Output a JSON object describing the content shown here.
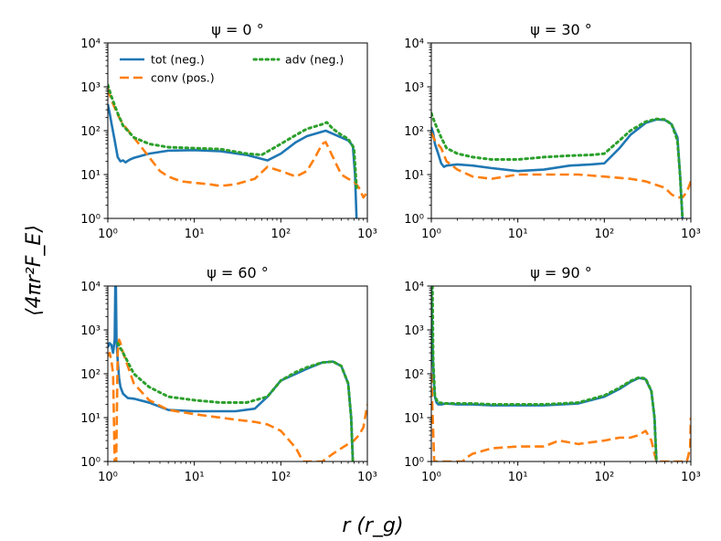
{
  "figure": {
    "ylabel": "⟨4πr²F_E⟩",
    "xlabel": "r (r_g)"
  },
  "colors": {
    "tot": "#1f77b4",
    "conv": "#ff7f0e",
    "adv": "#2ca02c"
  },
  "legend": [
    {
      "key": "tot",
      "label": "tot (neg.)",
      "style": "solid"
    },
    {
      "key": "conv",
      "label": "conv (pos.)",
      "style": "dashed"
    },
    {
      "key": "adv",
      "label": "adv (neg.)",
      "style": "dotted"
    }
  ],
  "chart_data": [
    {
      "type": "line",
      "title": "ψ = 0 °",
      "xscale": "log",
      "yscale": "log",
      "xlim": [
        1,
        1000
      ],
      "ylim": [
        1,
        10000
      ],
      "xticks": [
        1,
        10,
        100,
        1000
      ],
      "yticks": [
        1,
        10,
        100,
        1000,
        10000
      ],
      "legend_position": "top",
      "series": [
        {
          "name": "tot (neg.)",
          "key": "tot",
          "x": [
            1,
            1.05,
            1.1,
            1.2,
            1.3,
            1.4,
            1.5,
            1.6,
            1.8,
            2,
            3,
            5,
            10,
            20,
            40,
            70,
            100,
            150,
            200,
            300,
            330,
            400,
            500,
            600,
            680,
            720,
            750
          ],
          "y": [
            400,
            250,
            150,
            60,
            25,
            20,
            21,
            19,
            22,
            24,
            30,
            35,
            36,
            34,
            28,
            21,
            30,
            55,
            75,
            95,
            100,
            85,
            70,
            60,
            45,
            10,
            1
          ]
        },
        {
          "name": "conv (pos.)",
          "key": "conv",
          "x": [
            1,
            1.1,
            1.3,
            1.5,
            2,
            3,
            4,
            5,
            7,
            10,
            15,
            20,
            30,
            50,
            70,
            100,
            150,
            200,
            250,
            300,
            330,
            400,
            500,
            600,
            700,
            800,
            900,
            1000
          ],
          "y": [
            900,
            500,
            230,
            140,
            70,
            25,
            12,
            9,
            7,
            6.5,
            6,
            5.5,
            6,
            8,
            15,
            12,
            9,
            12,
            25,
            50,
            55,
            25,
            10,
            8,
            7,
            5,
            3,
            4
          ]
        },
        {
          "name": "adv (neg.)",
          "key": "adv",
          "x": [
            1,
            1.1,
            1.3,
            1.5,
            2,
            3,
            5,
            10,
            20,
            40,
            60,
            100,
            150,
            200,
            300,
            340,
            400,
            500,
            600,
            700,
            750
          ],
          "y": [
            1100,
            600,
            250,
            130,
            70,
            50,
            42,
            40,
            38,
            30,
            28,
            50,
            80,
            110,
            140,
            155,
            110,
            80,
            65,
            40,
            5
          ]
        }
      ]
    },
    {
      "type": "line",
      "title": "ψ = 30 °",
      "xscale": "log",
      "yscale": "log",
      "xlim": [
        1,
        1000
      ],
      "ylim": [
        1,
        10000
      ],
      "xticks": [
        1,
        10,
        100,
        1000
      ],
      "yticks": [
        1,
        10,
        100,
        1000,
        10000
      ],
      "series": [
        {
          "name": "tot (neg.)",
          "key": "tot",
          "x": [
            1,
            1.05,
            1.1,
            1.2,
            1.3,
            1.4,
            1.5,
            2,
            3,
            5,
            10,
            20,
            40,
            70,
            100,
            150,
            200,
            300,
            400,
            500,
            600,
            700,
            750,
            800
          ],
          "y": [
            120,
            90,
            50,
            30,
            18,
            15,
            16,
            17,
            16,
            14,
            12,
            13,
            16,
            17,
            18,
            40,
            80,
            150,
            180,
            175,
            140,
            70,
            10,
            1
          ]
        },
        {
          "name": "conv (pos.)",
          "key": "conv",
          "x": [
            1,
            1.1,
            1.3,
            1.5,
            2,
            3,
            5,
            10,
            20,
            50,
            100,
            200,
            300,
            500,
            600,
            700,
            800,
            900,
            1000
          ],
          "y": [
            90,
            60,
            40,
            20,
            13,
            9,
            8,
            10,
            10,
            10,
            9,
            8,
            7,
            5,
            3.5,
            3,
            3,
            4,
            7
          ]
        },
        {
          "name": "adv (neg.)",
          "key": "adv",
          "x": [
            1,
            1.1,
            1.3,
            1.5,
            2,
            3,
            5,
            10,
            20,
            40,
            70,
            100,
            150,
            200,
            300,
            400,
            500,
            600,
            700,
            750,
            800
          ],
          "y": [
            250,
            150,
            70,
            40,
            30,
            25,
            22,
            22,
            25,
            27,
            28,
            30,
            60,
            100,
            160,
            185,
            180,
            140,
            60,
            10,
            1
          ]
        }
      ]
    },
    {
      "type": "line",
      "title": "ψ = 60 °",
      "xscale": "log",
      "yscale": "log",
      "xlim": [
        1,
        1000
      ],
      "ylim": [
        1,
        10000
      ],
      "xticks": [
        1,
        10,
        100,
        1000
      ],
      "yticks": [
        1,
        10,
        100,
        1000,
        10000
      ],
      "series": [
        {
          "name": "tot (neg.)",
          "key": "tot",
          "x": [
            1,
            1.05,
            1.1,
            1.15,
            1.2,
            1.22,
            1.24,
            1.26,
            1.3,
            1.35,
            1.4,
            1.5,
            1.7,
            2,
            3,
            5,
            10,
            20,
            30,
            50,
            70,
            100,
            150,
            200,
            300,
            400,
            500,
            600,
            650,
            680
          ],
          "y": [
            400,
            500,
            450,
            300,
            600,
            10000,
            10000,
            600,
            200,
            80,
            50,
            35,
            28,
            27,
            22,
            15,
            14,
            14,
            14,
            16,
            30,
            70,
            100,
            130,
            180,
            190,
            150,
            60,
            10,
            1
          ]
        },
        {
          "name": "conv (pos.)",
          "key": "conv",
          "x": [
            1,
            1.05,
            1.1,
            1.15,
            1.2,
            1.25,
            1.3,
            1.35,
            1.4,
            1.5,
            1.7,
            2,
            3,
            5,
            10,
            20,
            30,
            50,
            70,
            100,
            150,
            180,
            200,
            300,
            400,
            500,
            600,
            700,
            800,
            900,
            1000
          ],
          "y": [
            250,
            300,
            200,
            100,
            1,
            1,
            300,
            600,
            500,
            300,
            150,
            60,
            25,
            15,
            12,
            10,
            9,
            8,
            7,
            5,
            2,
            1,
            1,
            1,
            1.5,
            2,
            2.5,
            3,
            4,
            6,
            20
          ]
        },
        {
          "name": "adv (neg.)",
          "key": "adv",
          "x": [
            1.3,
            1.5,
            2,
            3,
            5,
            10,
            20,
            40,
            70,
            100,
            150,
            200,
            300,
            400,
            500,
            600,
            650,
            680
          ],
          "y": [
            500,
            300,
            100,
            50,
            30,
            25,
            22,
            22,
            30,
            70,
            110,
            140,
            180,
            190,
            150,
            60,
            10,
            1
          ]
        }
      ]
    },
    {
      "type": "line",
      "title": "ψ = 90 °",
      "xscale": "log",
      "yscale": "log",
      "xlim": [
        1,
        1000
      ],
      "ylim": [
        1,
        10000
      ],
      "xticks": [
        1,
        10,
        100,
        1000
      ],
      "yticks": [
        1,
        10,
        100,
        1000,
        10000
      ],
      "series": [
        {
          "name": "tot (neg.)",
          "key": "tot",
          "x": [
            1,
            1.02,
            1.05,
            1.08,
            1.1,
            1.15,
            1.2,
            1.3,
            1.5,
            2,
            3,
            5,
            10,
            20,
            50,
            100,
            150,
            200,
            250,
            300,
            350,
            380,
            400
          ],
          "y": [
            10000,
            1000,
            150,
            50,
            30,
            22,
            20,
            20,
            21,
            20,
            20,
            19,
            19,
            19,
            21,
            30,
            45,
            65,
            80,
            75,
            40,
            10,
            1
          ]
        },
        {
          "name": "conv (pos.)",
          "key": "conv",
          "x": [
            1,
            1.02,
            1.05,
            1.08,
            1.1,
            1.15,
            1.2,
            1.5,
            2,
            2.3,
            2.5,
            3,
            5,
            10,
            20,
            30,
            50,
            100,
            150,
            200,
            250,
            300,
            350,
            380,
            400,
            420,
            450,
            500,
            700,
            900,
            980,
            1000
          ],
          "y": [
            100,
            30,
            5,
            1,
            1,
            1,
            1,
            1,
            1,
            1,
            1.2,
            1.5,
            2,
            2.2,
            2.2,
            3,
            2.5,
            3,
            3.5,
            3.5,
            4,
            5,
            3,
            1.5,
            1,
            1,
            1,
            1,
            1,
            1,
            2,
            10
          ]
        },
        {
          "name": "adv (neg.)",
          "key": "adv",
          "x": [
            1.03,
            1.05,
            1.1,
            1.2,
            1.5,
            2,
            3,
            5,
            10,
            20,
            50,
            100,
            150,
            200,
            250,
            300,
            350,
            380,
            400
          ],
          "y": [
            10000,
            200,
            30,
            22,
            21,
            21,
            21,
            20,
            20,
            20,
            22,
            32,
            48,
            68,
            82,
            78,
            40,
            10,
            1
          ]
        }
      ]
    }
  ]
}
